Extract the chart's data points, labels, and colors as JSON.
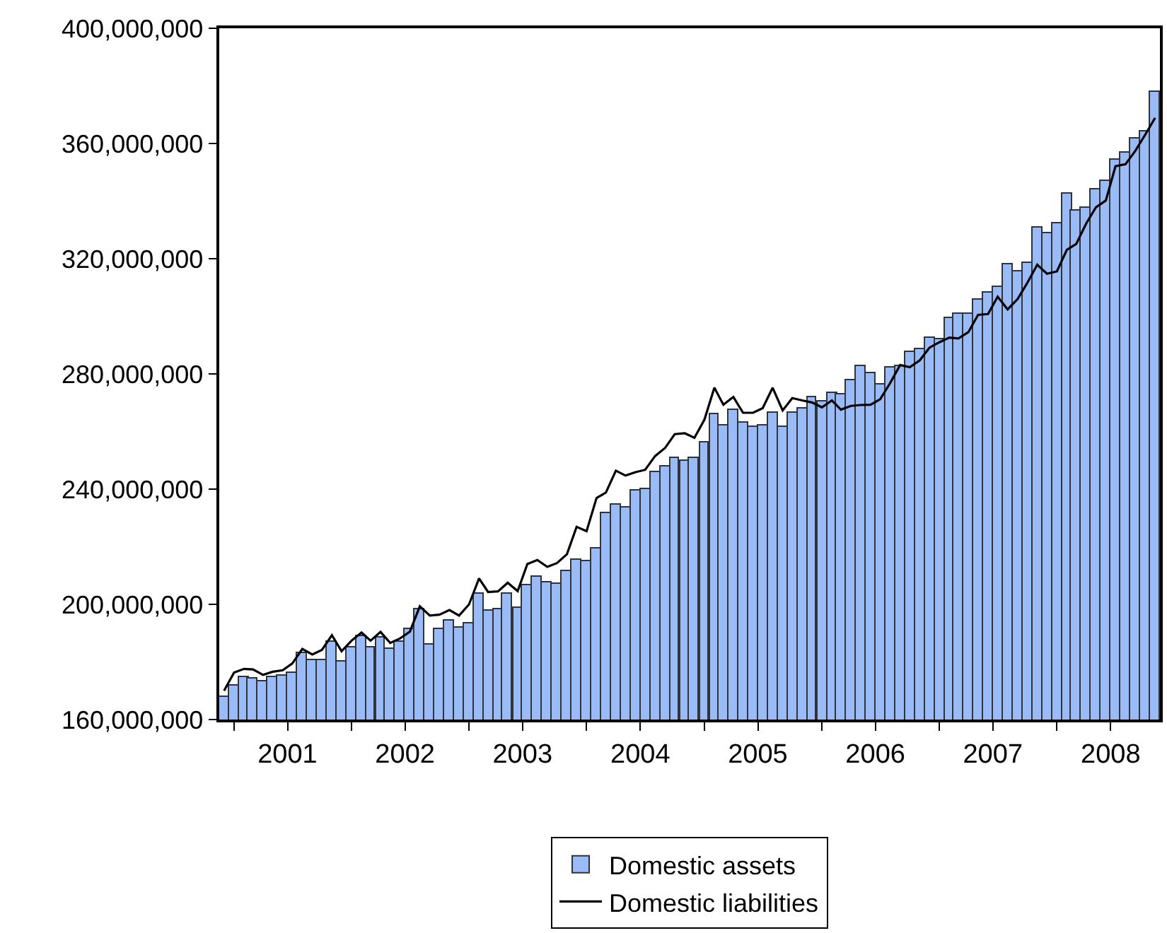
{
  "chart_data": {
    "type": "bar",
    "x": [
      "2000-12",
      "2001-01",
      "2001-02",
      "2001-03",
      "2001-04",
      "2001-05",
      "2001-06",
      "2001-07",
      "2001-08",
      "2001-09",
      "2001-10",
      "2001-11",
      "2001-12",
      "2002-01",
      "2002-02",
      "2002-03",
      "2002-04",
      "2002-05",
      "2002-06",
      "2002-07",
      "2002-08",
      "2002-09",
      "2002-10",
      "2002-11",
      "2002-12",
      "2003-01",
      "2003-02",
      "2003-03",
      "2003-04",
      "2003-05",
      "2003-06",
      "2003-07",
      "2003-08",
      "2003-09",
      "2003-10",
      "2003-11",
      "2003-12",
      "2004-01",
      "2004-02",
      "2004-03",
      "2004-04",
      "2004-05",
      "2004-06",
      "2004-07",
      "2004-08",
      "2004-09",
      "2004-10",
      "2004-11",
      "2004-12",
      "2005-01",
      "2005-02",
      "2005-03",
      "2005-04",
      "2005-05",
      "2005-06",
      "2005-07",
      "2005-08",
      "2005-09",
      "2005-10",
      "2005-11",
      "2005-12",
      "2006-01",
      "2006-02",
      "2006-03",
      "2006-04",
      "2006-05",
      "2006-06",
      "2006-07",
      "2006-08",
      "2006-09",
      "2006-10",
      "2006-11",
      "2006-12",
      "2007-01",
      "2007-02",
      "2007-03",
      "2007-04",
      "2007-05",
      "2007-06",
      "2007-07",
      "2007-08",
      "2007-09",
      "2007-10",
      "2007-11",
      "2007-12",
      "2008-01",
      "2008-02",
      "2008-03",
      "2008-04",
      "2008-05",
      "2008-06",
      "2008-07",
      "2008-08",
      "2008-09",
      "2008-10",
      "2008-11"
    ],
    "series": [
      {
        "name": "Domestic assets",
        "color": "#99bbf8",
        "values": [
          167900000,
          171900000,
          174600000,
          174100000,
          173100000,
          174600000,
          175200000,
          176000000,
          183100000,
          180400000,
          180700000,
          187200000,
          180300000,
          185000000,
          189000000,
          185000000,
          188500000,
          184700000,
          187200000,
          191300000,
          198300000,
          186100000,
          191300000,
          194500000,
          192100000,
          193400000,
          203800000,
          198000000,
          198500000,
          203500000,
          198700000,
          206400000,
          209500000,
          207500000,
          206900000,
          211300000,
          215400000,
          214900000,
          219300000,
          231500000,
          234700000,
          233600000,
          239300000,
          240100000,
          245800000,
          247800000,
          250700000,
          250000000,
          250700000,
          256200000,
          266100000,
          262100000,
          267600000,
          263200000,
          261400000,
          262200000,
          266500000,
          261400000,
          266500000,
          267900000,
          271700000,
          270400000,
          273500000,
          273100000,
          278000000,
          282500000,
          280400000,
          276300000,
          282300000,
          282600000,
          287500000,
          288800000,
          292600000,
          291800000,
          299200000,
          300800000,
          300800000,
          306000000,
          308100000,
          310300000,
          317900000,
          315800000,
          318300000,
          330700000,
          328900000,
          332400000,
          342700000,
          336900000,
          337800000,
          344000000,
          347200000,
          354300000,
          357000000,
          361800000,
          364100000,
          378000000
        ]
      },
      {
        "name": "Domestic liabilities",
        "type": "line",
        "color": "#000000",
        "values": [
          170000000,
          176300000,
          177600000,
          177400000,
          175500000,
          176600000,
          177100000,
          179500000,
          184500000,
          182600000,
          184200000,
          189300000,
          183700000,
          187400000,
          190200000,
          187400000,
          190400000,
          186600000,
          188200000,
          190500000,
          199300000,
          196100000,
          196400000,
          198000000,
          196100000,
          200000000,
          209000000,
          204300000,
          204500000,
          207500000,
          204600000,
          214000000,
          215400000,
          213000000,
          214300000,
          217400000,
          226900000,
          225400000,
          236900000,
          238800000,
          246400000,
          244700000,
          245900000,
          246700000,
          251500000,
          254300000,
          259100000,
          259400000,
          257800000,
          264100000,
          275200000,
          269300000,
          272000000,
          266500000,
          266500000,
          268100000,
          275200000,
          267300000,
          271600000,
          270800000,
          270100000,
          268400000,
          270800000,
          267600000,
          268900000,
          269200000,
          269300000,
          271200000,
          276800000,
          283100000,
          282300000,
          284700000,
          289100000,
          291000000,
          292600000,
          292300000,
          294500000,
          300500000,
          300800000,
          306800000,
          302400000,
          306000000,
          311600000,
          317900000,
          314800000,
          315600000,
          323100000,
          325100000,
          332200000,
          337800000,
          340200000,
          352100000,
          352800000,
          357500000,
          363000000,
          368900000
        ]
      }
    ],
    "xlim": [
      "2000-11-16",
      "2008-11-16"
    ],
    "xticks": [
      {
        "value": "2001-01",
        "label": null
      },
      {
        "value": "2001-06-16",
        "label": "2001"
      },
      {
        "value": "2002-01",
        "label": null
      },
      {
        "value": "2002-06-16",
        "label": "2002"
      },
      {
        "value": "2003-01",
        "label": null
      },
      {
        "value": "2003-06-16",
        "label": "2003"
      },
      {
        "value": "2004-01",
        "label": null
      },
      {
        "value": "2004-06-16",
        "label": "2004"
      },
      {
        "value": "2005-01",
        "label": null
      },
      {
        "value": "2005-06-16",
        "label": "2005"
      },
      {
        "value": "2006-01",
        "label": null
      },
      {
        "value": "2006-06-16",
        "label": "2006"
      },
      {
        "value": "2007-01",
        "label": null
      },
      {
        "value": "2007-06-16",
        "label": "2007"
      },
      {
        "value": "2008-01",
        "label": null
      },
      {
        "value": "2008-06-16",
        "label": "2008"
      }
    ],
    "ylim": [
      160000000,
      400000000
    ],
    "yticks": [
      {
        "value": 160000000,
        "label": "160,000,000"
      },
      {
        "value": 200000000,
        "label": "200,000,000"
      },
      {
        "value": 240000000,
        "label": "240,000,000"
      },
      {
        "value": 280000000,
        "label": "280,000,000"
      },
      {
        "value": 320000000,
        "label": "320,000,000"
      },
      {
        "value": 360000000,
        "label": "360,000,000"
      },
      {
        "value": 400000000,
        "label": "400,000,000"
      }
    ],
    "legend": "bottom"
  }
}
